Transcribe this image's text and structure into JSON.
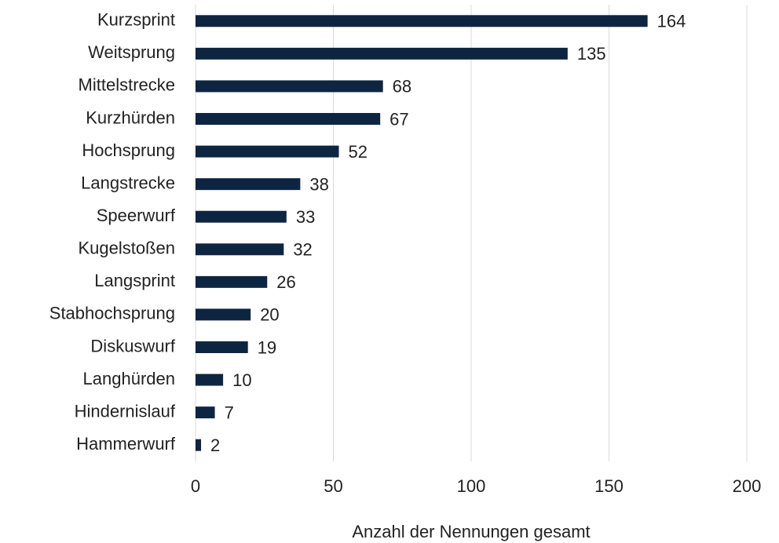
{
  "chart_data": {
    "type": "bar",
    "orientation": "horizontal",
    "x_label": "Anzahl der Nennungen gesamt",
    "categories": [
      "Kurzsprint",
      "Weitsprung",
      "Mittelstrecke",
      "Kurzhürden",
      "Hochsprung",
      "Langstrecke",
      "Speerwurf",
      "Kugelstoßen",
      "Langsprint",
      "Stabhochsprung",
      "Diskuswurf",
      "Langhürden",
      "Hindernislauf",
      "Hammerwurf"
    ],
    "values": [
      164,
      135,
      68,
      67,
      52,
      38,
      33,
      32,
      26,
      20,
      19,
      10,
      7,
      2
    ],
    "color": "#0e2541",
    "xlim": [
      0,
      200
    ],
    "xticks": [
      0,
      50,
      100,
      150,
      200
    ],
    "grid": true
  }
}
